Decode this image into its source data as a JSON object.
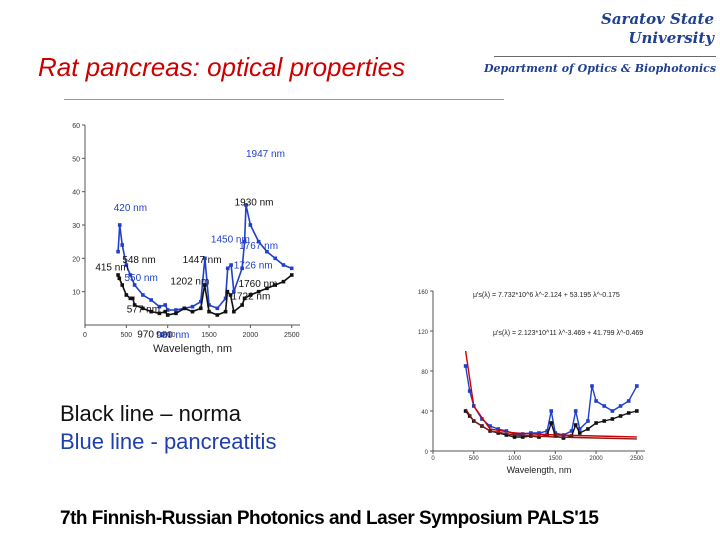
{
  "header": {
    "title": "Rat pancreas: optical properties",
    "university": [
      "Saratov State",
      "University"
    ],
    "department": "Department of Optics & Biophotonics"
  },
  "legend": {
    "black": "Black line – norma",
    "blue": "Blue line - pancreatitis"
  },
  "footer": "7th Finnish-Russian Photonics and Laser Symposium PALS'15",
  "colors": {
    "normal": "#111111",
    "pancreatitis": "#1f3fcc",
    "fit": "#cc0000",
    "title": "#cc0000",
    "header_blue": "#1f3f8f"
  },
  "chart_data": [
    {
      "type": "line",
      "title": "",
      "xlabel": "Wavelength, nm",
      "ylabel": "",
      "xlim": [
        0,
        2600
      ],
      "ylim": [
        0,
        60
      ],
      "x_ticks": [
        0,
        500,
        1000,
        1500,
        2000,
        2500
      ],
      "y_ticks": [
        10,
        20,
        30,
        40,
        50,
        60
      ],
      "grid": false,
      "series": [
        {
          "color": "#1f3fcc",
          "x": [
            400,
            420,
            450,
            500,
            548,
            600,
            700,
            800,
            900,
            970,
            1000,
            1100,
            1200,
            1300,
            1400,
            1450,
            1500,
            1600,
            1700,
            1726,
            1767,
            1800,
            1900,
            1930,
            1947,
            2000,
            2100,
            2200,
            2300,
            2400,
            2500
          ],
          "y": [
            22,
            30,
            24,
            18,
            15,
            12,
            9,
            7.5,
            5.5,
            6,
            4.5,
            4.5,
            5,
            5.5,
            7,
            20,
            6,
            5,
            8,
            17,
            18,
            10,
            17,
            25,
            36,
            30,
            25,
            22,
            20,
            18,
            17
          ]
        },
        {
          "color": "#111111",
          "x": [
            400,
            415,
            450,
            500,
            548,
            577,
            600,
            700,
            800,
            900,
            970,
            1000,
            1100,
            1202,
            1300,
            1400,
            1447,
            1500,
            1600,
            1700,
            1722,
            1760,
            1800,
            1900,
            1930,
            2000,
            2100,
            2200,
            2300,
            2400,
            2500
          ],
          "y": [
            15,
            14,
            12,
            9,
            8,
            8,
            6,
            5,
            4,
            3.5,
            4,
            3,
            3.5,
            5,
            4,
            5,
            12,
            4,
            3,
            4,
            10,
            9,
            4,
            6,
            8,
            9,
            10,
            11,
            12,
            13,
            15
          ]
        }
      ],
      "annotations": [
        {
          "label": "1947 nm",
          "x": 1947,
          "y": 36
        },
        {
          "label": "1930 nm",
          "x": 1930,
          "y": 25
        },
        {
          "label": "1450 nm",
          "x": 1450,
          "y": 20
        },
        {
          "label": "420 nm",
          "x": 420,
          "y": 30
        },
        {
          "label": "1447 nm",
          "x": 1447,
          "y": 12
        },
        {
          "label": "548 nm",
          "x": 548,
          "y": 15
        },
        {
          "label": "1767 nm",
          "x": 1767,
          "y": 18
        },
        {
          "label": "1202 nm",
          "x": 1202,
          "y": 5
        },
        {
          "label": "1760 nm",
          "x": 1760,
          "y": 9
        },
        {
          "label": "415 nm",
          "x": 415,
          "y": 14
        },
        {
          "label": "1726 nm",
          "x": 1726,
          "y": 17
        },
        {
          "label": "550 nm",
          "x": 550,
          "y": 15
        },
        {
          "label": "1722 nm",
          "x": 1722,
          "y": 10
        },
        {
          "label": "577 nm",
          "x": 577,
          "y": 8
        },
        {
          "label": "970 nm",
          "x": 970,
          "y": 4
        },
        {
          "label": "980 nm",
          "x": 980,
          "y": 4.5
        }
      ]
    },
    {
      "type": "line",
      "title": "",
      "xlabel": "Wavelength, nm",
      "ylabel": "",
      "xlim": [
        0,
        2600
      ],
      "ylim": [
        0,
        160
      ],
      "x_ticks": [
        0,
        500,
        1000,
        1500,
        2000,
        2500
      ],
      "y_ticks": [
        0,
        40,
        80,
        120,
        160
      ],
      "grid": false,
      "formulas": [
        "μ's(λ) = 7.732*10^6 λ^-2.124 + 53.195 λ^-0.175",
        "μ's(λ) = 2.123*10^11 λ^-3.469 + 41.799 λ^-0.469"
      ],
      "series": [
        {
          "color": "#1f3fcc",
          "x": [
            400,
            450,
            500,
            600,
            700,
            800,
            900,
            1000,
            1100,
            1200,
            1300,
            1400,
            1450,
            1500,
            1600,
            1700,
            1750,
            1800,
            1900,
            1950,
            2000,
            2100,
            2200,
            2300,
            2400,
            2500
          ],
          "y": [
            85,
            60,
            45,
            32,
            25,
            22,
            20,
            17,
            17,
            18,
            18,
            20,
            40,
            18,
            16,
            20,
            40,
            22,
            30,
            65,
            50,
            45,
            40,
            45,
            50,
            65
          ]
        },
        {
          "color": "#111111",
          "x": [
            400,
            450,
            500,
            600,
            700,
            800,
            900,
            1000,
            1100,
            1200,
            1300,
            1400,
            1450,
            1500,
            1600,
            1700,
            1750,
            1800,
            1900,
            2000,
            2100,
            2200,
            2300,
            2400,
            2500
          ],
          "y": [
            40,
            35,
            30,
            25,
            20,
            18,
            16,
            14,
            14,
            15,
            14,
            16,
            28,
            15,
            13,
            15,
            26,
            18,
            22,
            28,
            30,
            32,
            35,
            38,
            40
          ]
        },
        {
          "color": "#cc0000",
          "x": [
            400,
            500,
            700,
            1000,
            1500,
            2000,
            2500
          ],
          "y": [
            100,
            45,
            22,
            18,
            16,
            15,
            14
          ]
        },
        {
          "color": "#8b1a1a",
          "x": [
            400,
            500,
            700,
            1000,
            1500,
            2000,
            2500
          ],
          "y": [
            42,
            30,
            20,
            16,
            14,
            13,
            12
          ]
        }
      ]
    }
  ]
}
